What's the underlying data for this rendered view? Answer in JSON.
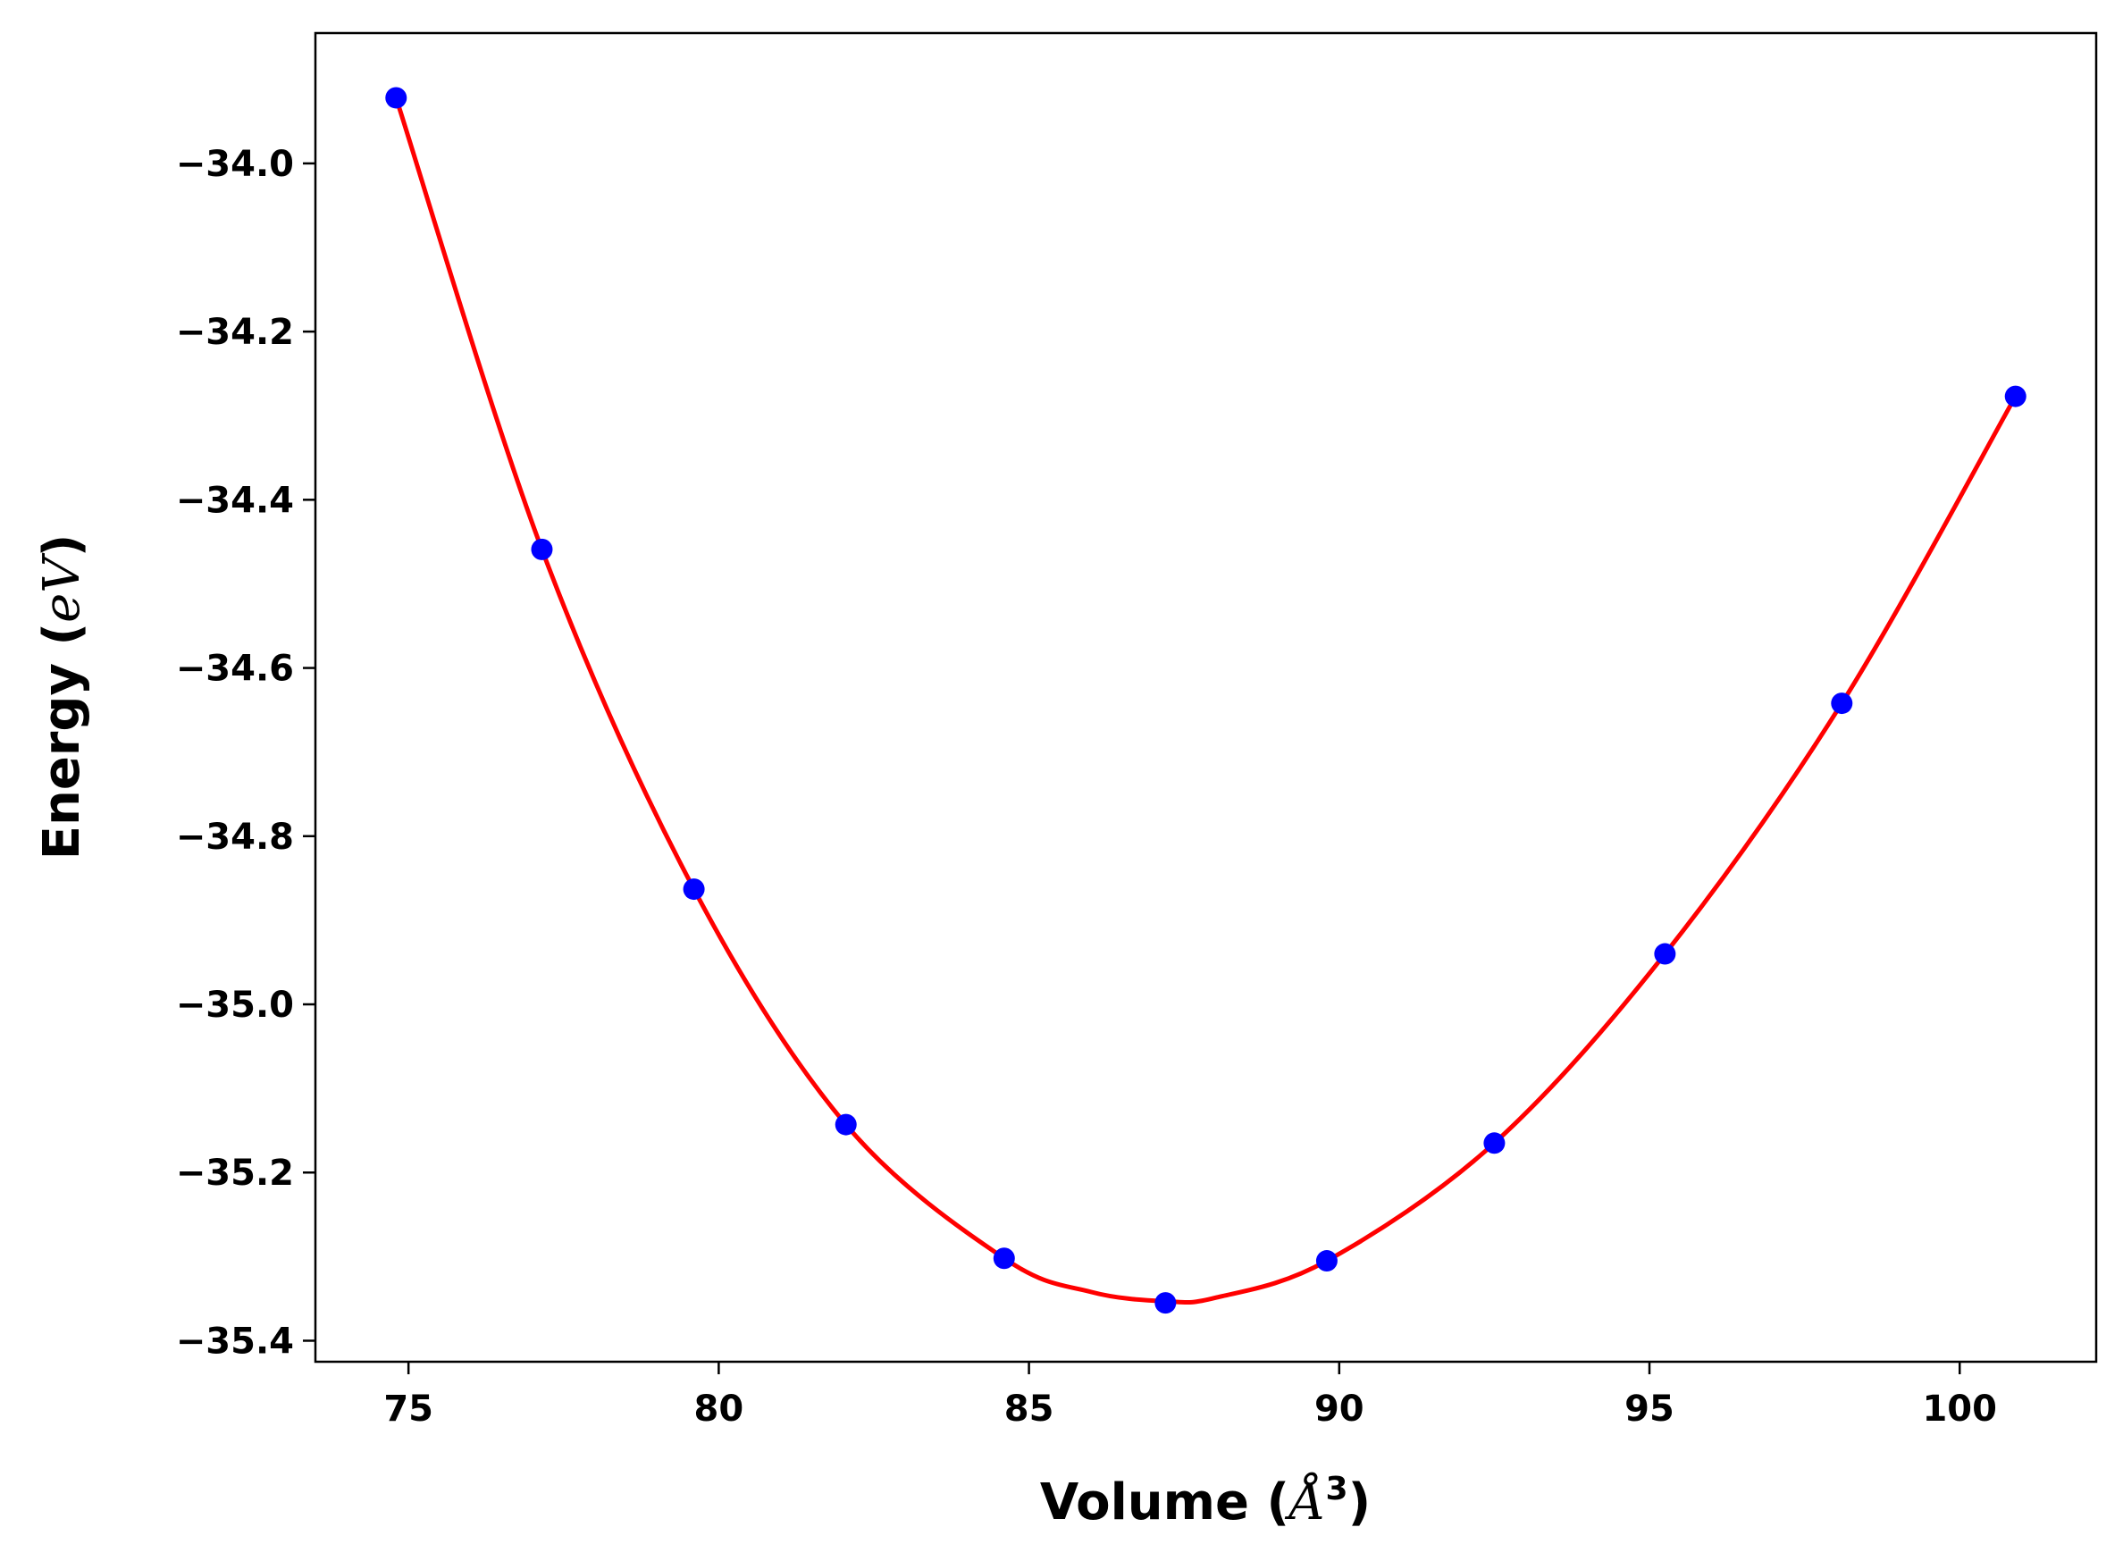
{
  "chart_data": {
    "type": "line",
    "title": "",
    "xlabel_prefix": "Volume (",
    "xlabel_unit": "Å",
    "xlabel_sup": "3",
    "xlabel_suffix": ")",
    "ylabel_prefix": "Energy (",
    "ylabel_unit": "eV",
    "ylabel_suffix": ")",
    "xlim": [
      73.5,
      102.2
    ],
    "ylim": [
      -35.425,
      -33.845
    ],
    "xticks": [
      75,
      80,
      85,
      90,
      95,
      100
    ],
    "xtick_labels": [
      "75",
      "80",
      "85",
      "90",
      "95",
      "100"
    ],
    "yticks": [
      -34.0,
      -34.2,
      -34.4,
      -34.6,
      -34.8,
      -35.0,
      -35.2,
      -35.4
    ],
    "ytick_labels": [
      "−34.0",
      "−34.2",
      "−34.4",
      "−34.6",
      "−34.8",
      "−35.0",
      "−35.2",
      "−35.4"
    ],
    "grid": false,
    "series": [
      {
        "kind": "points",
        "color": "#0000ff",
        "x": [
          74.8,
          77.15,
          79.6,
          82.05,
          84.6,
          87.2,
          89.8,
          92.5,
          95.25,
          98.1,
          100.9
        ],
        "y": [
          -33.922,
          -34.459,
          -34.863,
          -35.143,
          -35.302,
          -35.355,
          -35.305,
          -35.165,
          -34.94,
          -34.642,
          -34.277
        ]
      },
      {
        "kind": "fit-curve",
        "color": "#ff0000",
        "x": [
          74.8,
          77.15,
          79.6,
          82.05,
          84.6,
          86.0,
          87.2,
          88.0,
          89.8,
          92.5,
          95.25,
          98.1,
          100.9
        ],
        "y": [
          -33.922,
          -34.459,
          -34.863,
          -35.143,
          -35.302,
          -35.342,
          -35.353,
          -35.349,
          -35.305,
          -35.165,
          -34.94,
          -34.642,
          -34.277
        ]
      }
    ]
  }
}
